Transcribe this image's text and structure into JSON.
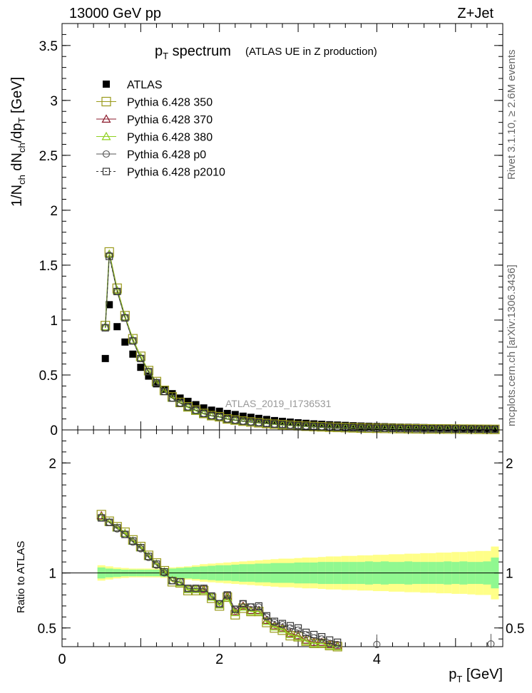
{
  "header": {
    "left": "13000 GeV pp",
    "right": "Z+Jet"
  },
  "title": {
    "main": "p",
    "sub": "T",
    "rest": " spectrum",
    "annotation": "(ATLAS UE in Z production)"
  },
  "watermark": "ATLAS_2019_I1736531",
  "side_text": {
    "upper": "Rivet 3.1.10, ≥ 2.6M events",
    "lower": "mcplots.cern.ch [arXiv:1306.3436]"
  },
  "axes": {
    "top_ylabel": "1/N_ch dN_ch/dp_T [GeV]",
    "bottom_ylabel": "Ratio to ATLAS",
    "xlabel": "p_T [GeV]"
  },
  "chart_data": [
    {
      "type": "scatter",
      "panel": "main",
      "xlim": [
        0,
        5.6
      ],
      "ylim": [
        0,
        3.7
      ],
      "yticks": [
        "0",
        "0.5",
        "1",
        "1.5",
        "2",
        "2.5",
        "3",
        "3.5"
      ],
      "ytick_values": [
        0,
        0.5,
        1,
        1.5,
        2,
        2.5,
        3,
        3.5
      ],
      "x": [
        0.55,
        0.6,
        0.7,
        0.8,
        0.9,
        1.0,
        1.1,
        1.2,
        1.3,
        1.4,
        1.5,
        1.6,
        1.7,
        1.8,
        1.9,
        2.0,
        2.1,
        2.2,
        2.3,
        2.4,
        2.5,
        2.6,
        2.7,
        2.8,
        2.9,
        3.0,
        3.1,
        3.2,
        3.3,
        3.4,
        3.5,
        3.6,
        3.7,
        3.8,
        3.9,
        4.0,
        4.1,
        4.2,
        4.3,
        4.4,
        4.5,
        4.6,
        4.7,
        4.8,
        4.9,
        5.0,
        5.1,
        5.2,
        5.3,
        5.4,
        5.5
      ],
      "series": [
        {
          "name": "ATLAS",
          "style": "data",
          "color": "#000000",
          "values": [
            0.65,
            1.14,
            0.94,
            0.8,
            0.69,
            0.57,
            0.49,
            0.42,
            0.37,
            0.33,
            0.29,
            0.26,
            0.23,
            0.2,
            0.18,
            0.17,
            0.15,
            0.14,
            0.125,
            0.115,
            0.105,
            0.095,
            0.085,
            0.078,
            0.071,
            0.065,
            0.06,
            0.055,
            0.051,
            0.047,
            0.044,
            0.041,
            0.038,
            0.035,
            0.033,
            0.031,
            0.029,
            0.027,
            0.025,
            0.024,
            0.023,
            0.021,
            0.02,
            0.019,
            0.018,
            0.017,
            0.016,
            0.015,
            0.014,
            0.013,
            0.012
          ]
        },
        {
          "name": "Pythia 6.428 350",
          "style": "square",
          "color": "#9a9a1a",
          "values": [
            0.95,
            1.62,
            1.29,
            1.04,
            0.83,
            0.67,
            0.54,
            0.44,
            0.36,
            0.3,
            0.25,
            0.21,
            0.18,
            0.15,
            0.13,
            0.12,
            0.1,
            0.09,
            0.08,
            0.072,
            0.065,
            0.058,
            0.052,
            0.047,
            0.042,
            0.038,
            0.034,
            0.031,
            0.028,
            0.025,
            0.023,
            0.021,
            0.019,
            0.017,
            0.016,
            0.015,
            0.014,
            0.013,
            0.012,
            0.011,
            0.01,
            0.0095,
            0.009,
            0.0085,
            0.008,
            0.0075,
            0.007,
            0.0065,
            0.006,
            0.0055,
            0.005
          ]
        },
        {
          "name": "Pythia 6.428 370",
          "style": "triangle",
          "color": "#8b1a2b",
          "values": [
            0.94,
            1.6,
            1.27,
            1.03,
            0.82,
            0.66,
            0.53,
            0.43,
            0.35,
            0.29,
            0.245,
            0.205,
            0.175,
            0.147,
            0.127,
            0.118,
            0.098,
            0.088,
            0.079,
            0.071,
            0.064,
            0.057,
            0.051,
            0.046,
            0.041,
            0.037,
            0.033,
            0.03,
            0.027,
            0.024,
            0.022,
            0.02,
            0.018,
            0.017,
            0.016,
            0.015,
            0.014,
            0.013,
            0.012,
            0.011,
            0.01,
            0.0095,
            0.009,
            0.0085,
            0.008,
            0.0075,
            0.007,
            0.0065,
            0.006,
            0.0055,
            0.005
          ]
        },
        {
          "name": "Pythia 6.428 380",
          "style": "triangle",
          "color": "#8fd11f",
          "values": [
            0.94,
            1.6,
            1.27,
            1.03,
            0.82,
            0.66,
            0.53,
            0.43,
            0.35,
            0.29,
            0.245,
            0.205,
            0.175,
            0.147,
            0.127,
            0.118,
            0.098,
            0.088,
            0.079,
            0.071,
            0.064,
            0.057,
            0.051,
            0.046,
            0.041,
            0.037,
            0.033,
            0.03,
            0.027,
            0.024,
            0.022,
            0.02,
            0.018,
            0.017,
            0.016,
            0.015,
            0.014,
            0.013,
            0.012,
            0.011,
            0.01,
            0.0095,
            0.009,
            0.0085,
            0.008,
            0.0075,
            0.007,
            0.0065,
            0.006,
            0.0055,
            0.005
          ]
        },
        {
          "name": "Pythia 6.428 p0",
          "style": "circle",
          "color": "#555555",
          "values": [
            0.93,
            1.59,
            1.26,
            1.02,
            0.81,
            0.65,
            0.53,
            0.43,
            0.35,
            0.29,
            0.245,
            0.21,
            0.18,
            0.15,
            0.13,
            0.12,
            0.1,
            0.09,
            0.08,
            0.073,
            0.066,
            0.059,
            0.053,
            0.048,
            0.043,
            0.039,
            0.035,
            0.032,
            0.029,
            0.026,
            0.024,
            0.022,
            0.02,
            0.018,
            0.017,
            0.016,
            0.015,
            0.014,
            0.013,
            0.012,
            0.011,
            0.01,
            0.0095,
            0.009,
            0.0085,
            0.008,
            0.0075,
            0.007,
            0.0065,
            0.006,
            0.0055
          ]
        },
        {
          "name": "Pythia 6.428 p2010",
          "style": "dashsquare",
          "color": "#333333",
          "values": [
            0.93,
            1.58,
            1.26,
            1.02,
            0.81,
            0.65,
            0.53,
            0.43,
            0.35,
            0.29,
            0.245,
            0.21,
            0.18,
            0.15,
            0.13,
            0.12,
            0.1,
            0.09,
            0.08,
            0.073,
            0.066,
            0.059,
            0.053,
            0.048,
            0.043,
            0.039,
            0.035,
            0.032,
            0.029,
            0.026,
            0.024,
            0.022,
            0.02,
            0.018,
            0.017,
            0.016,
            0.015,
            0.014,
            0.013,
            0.012,
            0.011,
            0.01,
            0.0095,
            0.009,
            0.0085,
            0.008,
            0.0075,
            0.007,
            0.0065,
            0.006,
            0.0055
          ]
        }
      ]
    },
    {
      "type": "line",
      "panel": "ratio",
      "xlim": [
        0,
        5.6
      ],
      "ylim": [
        0.33,
        2.3
      ],
      "yticks": [
        "0.5",
        "1",
        "2"
      ],
      "ytick_values": [
        0.5,
        1,
        2
      ],
      "xticks": [
        "0",
        "2",
        "4"
      ],
      "xtick_values": [
        0,
        2,
        4
      ],
      "x": [
        0.5,
        0.6,
        0.7,
        0.8,
        0.9,
        1.0,
        1.1,
        1.2,
        1.3,
        1.4,
        1.5,
        1.6,
        1.7,
        1.8,
        1.9,
        2.0,
        2.1,
        2.2,
        2.3,
        2.4,
        2.5,
        2.6,
        2.7,
        2.8,
        2.9,
        3.0,
        3.1,
        3.2,
        3.3,
        3.4,
        3.5
      ],
      "band": {
        "x_edges": [
          0.45,
          0.55,
          0.65,
          0.75,
          0.85,
          0.95,
          1.05,
          1.15,
          1.25,
          1.35,
          1.45,
          1.55,
          1.65,
          1.75,
          1.85,
          1.95,
          2.05,
          2.15,
          2.25,
          2.35,
          2.45,
          2.55,
          2.65,
          2.75,
          2.85,
          2.95,
          3.05,
          3.15,
          3.25,
          3.35,
          3.45,
          3.55,
          3.65,
          3.75,
          3.85,
          3.95,
          4.05,
          4.15,
          4.25,
          4.35,
          4.45,
          4.55,
          4.65,
          4.75,
          4.85,
          4.95,
          5.05,
          5.15,
          5.25,
          5.35,
          5.45,
          5.55
        ],
        "inner": [
          0.05,
          0.04,
          0.035,
          0.03,
          0.03,
          0.03,
          0.03,
          0.03,
          0.035,
          0.04,
          0.045,
          0.05,
          0.055,
          0.06,
          0.065,
          0.07,
          0.07,
          0.075,
          0.08,
          0.08,
          0.085,
          0.085,
          0.09,
          0.09,
          0.09,
          0.095,
          0.095,
          0.095,
          0.1,
          0.1,
          0.1,
          0.1,
          0.1,
          0.1,
          0.105,
          0.1,
          0.105,
          0.1,
          0.1,
          0.105,
          0.1,
          0.1,
          0.1,
          0.1,
          0.105,
          0.1,
          0.105,
          0.1,
          0.1,
          0.105,
          0.14
        ],
        "outer": [
          0.07,
          0.06,
          0.05,
          0.045,
          0.04,
          0.04,
          0.04,
          0.04,
          0.045,
          0.05,
          0.055,
          0.06,
          0.07,
          0.08,
          0.085,
          0.09,
          0.095,
          0.1,
          0.105,
          0.11,
          0.115,
          0.12,
          0.125,
          0.13,
          0.13,
          0.135,
          0.14,
          0.14,
          0.145,
          0.15,
          0.15,
          0.155,
          0.155,
          0.16,
          0.16,
          0.165,
          0.165,
          0.17,
          0.17,
          0.175,
          0.175,
          0.18,
          0.18,
          0.185,
          0.185,
          0.19,
          0.19,
          0.195,
          0.2,
          0.2,
          0.24
        ]
      },
      "series": [
        {
          "name": "Pythia 6.428 350",
          "style": "square",
          "color": "#9a9a1a",
          "values": [
            1.53,
            1.47,
            1.42,
            1.37,
            1.3,
            1.24,
            1.16,
            1.09,
            1.02,
            0.92,
            0.91,
            0.84,
            0.84,
            0.84,
            0.77,
            0.7,
            0.78,
            0.62,
            0.68,
            0.65,
            0.65,
            0.55,
            0.5,
            0.48,
            0.43,
            0.42,
            0.38,
            0.36,
            0.36,
            0.34,
            0.33
          ]
        },
        {
          "name": "Pythia 6.428 370",
          "style": "triangle",
          "color": "#8b1a2b",
          "values": [
            1.52,
            1.46,
            1.41,
            1.36,
            1.29,
            1.23,
            1.15,
            1.08,
            1.01,
            0.93,
            0.91,
            0.85,
            0.85,
            0.85,
            0.78,
            0.71,
            0.79,
            0.65,
            0.7,
            0.66,
            0.66,
            0.57,
            0.52,
            0.5,
            0.45,
            0.43,
            0.39,
            0.37,
            0.37,
            0.35,
            0.34
          ]
        },
        {
          "name": "Pythia 6.428 380",
          "style": "triangle",
          "color": "#8fd11f",
          "values": [
            1.51,
            1.46,
            1.41,
            1.36,
            1.29,
            1.23,
            1.15,
            1.08,
            1.01,
            0.93,
            0.91,
            0.85,
            0.85,
            0.84,
            0.78,
            0.71,
            0.78,
            0.64,
            0.69,
            0.65,
            0.65,
            0.56,
            0.51,
            0.49,
            0.44,
            0.42,
            0.38,
            0.36,
            0.36,
            0.34,
            0.33
          ]
        },
        {
          "name": "Pythia 6.428 p0",
          "style": "circle",
          "color": "#555555",
          "values": [
            1.5,
            1.46,
            1.4,
            1.35,
            1.28,
            1.22,
            1.14,
            1.07,
            1.0,
            0.93,
            0.92,
            0.86,
            0.86,
            0.86,
            0.79,
            0.72,
            0.8,
            0.67,
            0.72,
            0.69,
            0.69,
            0.6,
            0.55,
            0.53,
            0.5,
            0.48,
            0.44,
            0.41,
            0.4,
            0.36,
            0.35
          ]
        },
        {
          "name": "Pythia 6.428 p2010",
          "style": "dashsquare",
          "color": "#333333",
          "values": [
            1.5,
            1.46,
            1.41,
            1.35,
            1.29,
            1.23,
            1.15,
            1.08,
            1.01,
            0.93,
            0.92,
            0.86,
            0.86,
            0.86,
            0.79,
            0.72,
            0.8,
            0.67,
            0.72,
            0.69,
            0.7,
            0.61,
            0.56,
            0.54,
            0.52,
            0.5,
            0.46,
            0.44,
            0.42,
            0.39,
            0.37
          ]
        }
      ],
      "extra_points": [
        {
          "series": "Pythia 6.428 p0",
          "x": 4.0,
          "y": 0.35
        },
        {
          "series": "Pythia 6.428 p0",
          "x": 5.45,
          "y": 0.355
        }
      ]
    }
  ]
}
